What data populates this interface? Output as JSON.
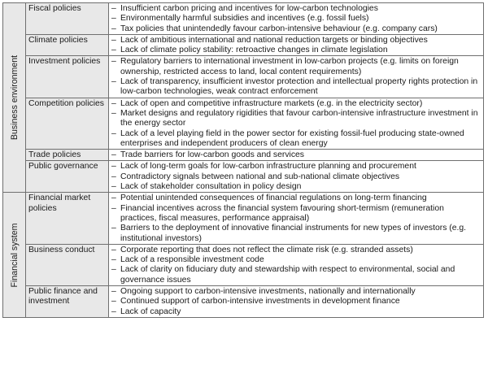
{
  "table": {
    "groups": [
      {
        "label": "Business environment",
        "rows": [
          {
            "category": "Fiscal policies",
            "items": [
              "Insufficient carbon pricing and incentives for low-carbon technologies",
              "Environmentally harmful subsidies and incentives (e.g. fossil fuels)",
              "Tax policies that unintendedly favour carbon-intensive behaviour (e.g. company cars)"
            ]
          },
          {
            "category": "Climate policies",
            "items": [
              "Lack of ambitious international and national reduction targets or binding objectives",
              "Lack of climate policy stability: retroactive changes in climate legislation"
            ]
          },
          {
            "category": "Investment policies",
            "items": [
              "Regulatory barriers to international investment in low-carbon projects (e.g. limits on foreign ownership, restricted access to land, local content requirements)",
              "Lack of transparency, insufficient investor protection and intellectual property rights protection in low-carbon technologies, weak contract enforcement"
            ]
          },
          {
            "category": "Competition policies",
            "items": [
              "Lack of open and competitive infrastructure markets (e.g. in the electricity sector)",
              "Market designs and regulatory rigidities that favour carbon-intensive infrastructure investment in the energy sector",
              "Lack of a level playing field in the power sector for existing fossil-fuel producing state-owned enterprises and independent producers of clean energy"
            ]
          },
          {
            "category": "Trade policies",
            "items": [
              "Trade barriers for low-carbon goods and services"
            ]
          },
          {
            "category": "Public governance",
            "items": [
              "Lack of long-term goals for low-carbon infrastructure planning and procurement",
              "Contradictory signals between national and sub-national climate objectives",
              "Lack of stakeholder consultation in policy design"
            ]
          }
        ]
      },
      {
        "label": "Financial system",
        "rows": [
          {
            "category": "Financial market policies",
            "items": [
              "Potential unintended consequences of financial regulations on long-term financing",
              "Financial incentives across the financial system favouring short-termism (remuneration practices, fiscal measures, performance appraisal)",
              "Barriers to the deployment of innovative financial instruments for new types of investors (e.g. institutional investors)"
            ]
          },
          {
            "category": "Business conduct",
            "items": [
              "Corporate reporting that does not reflect the climate risk (e.g. stranded assets)",
              "Lack of a responsible investment code",
              "Lack of clarity on fiduciary duty and stewardship with respect to environmental, social and governance issues"
            ]
          },
          {
            "category": "Public finance and investment",
            "items": [
              "Ongoing support to carbon-intensive investments, nationally and internationally",
              "Continued support of carbon-intensive investments in development finance",
              "Lack of capacity"
            ]
          }
        ]
      }
    ]
  }
}
